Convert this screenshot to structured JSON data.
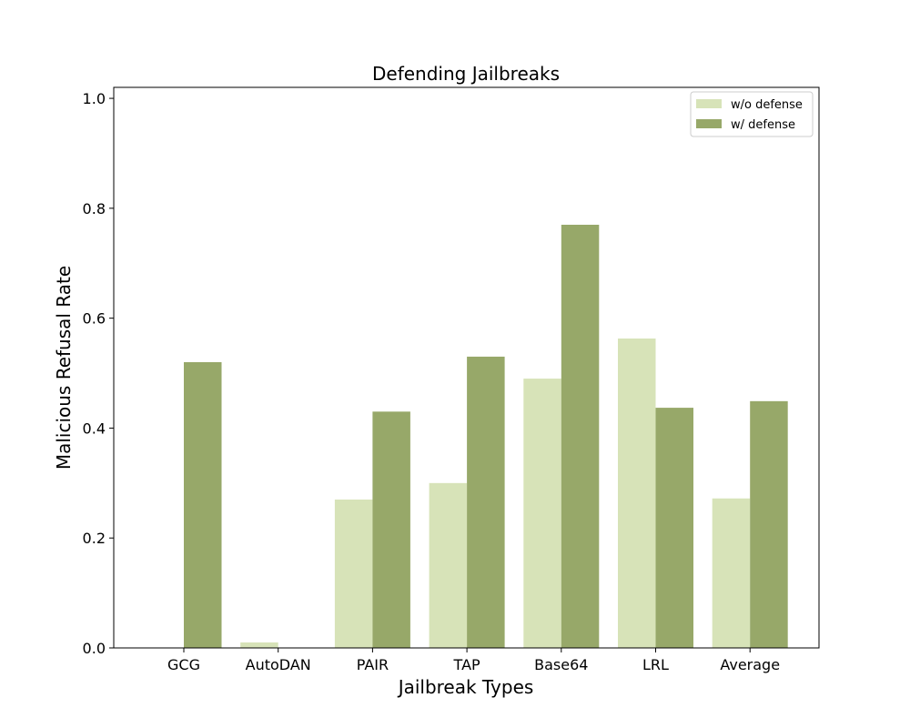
{
  "chart_data": {
    "type": "bar",
    "title": "Defending Jailbreaks",
    "xlabel": "Jailbreak Types",
    "ylabel": "Malicious Refusal Rate",
    "ylim": [
      0,
      1.02
    ],
    "yticks": [
      0.0,
      0.2,
      0.4,
      0.6,
      0.8,
      1.0
    ],
    "ytick_labels": [
      "0.0",
      "0.2",
      "0.4",
      "0.6",
      "0.8",
      "1.0"
    ],
    "categories": [
      "GCG",
      "AutoDAN",
      "PAIR",
      "TAP",
      "Base64",
      "LRL",
      "Average"
    ],
    "series": [
      {
        "name": "w/o defense",
        "color": "#d7e3b8",
        "values": [
          0.0,
          0.01,
          0.27,
          0.3,
          0.49,
          0.563,
          0.272
        ]
      },
      {
        "name": "w/ defense",
        "color": "#97a869",
        "values": [
          0.52,
          0.0,
          0.43,
          0.53,
          0.77,
          0.437,
          0.449
        ]
      }
    ],
    "legend_position": "top-right",
    "grid": false
  }
}
